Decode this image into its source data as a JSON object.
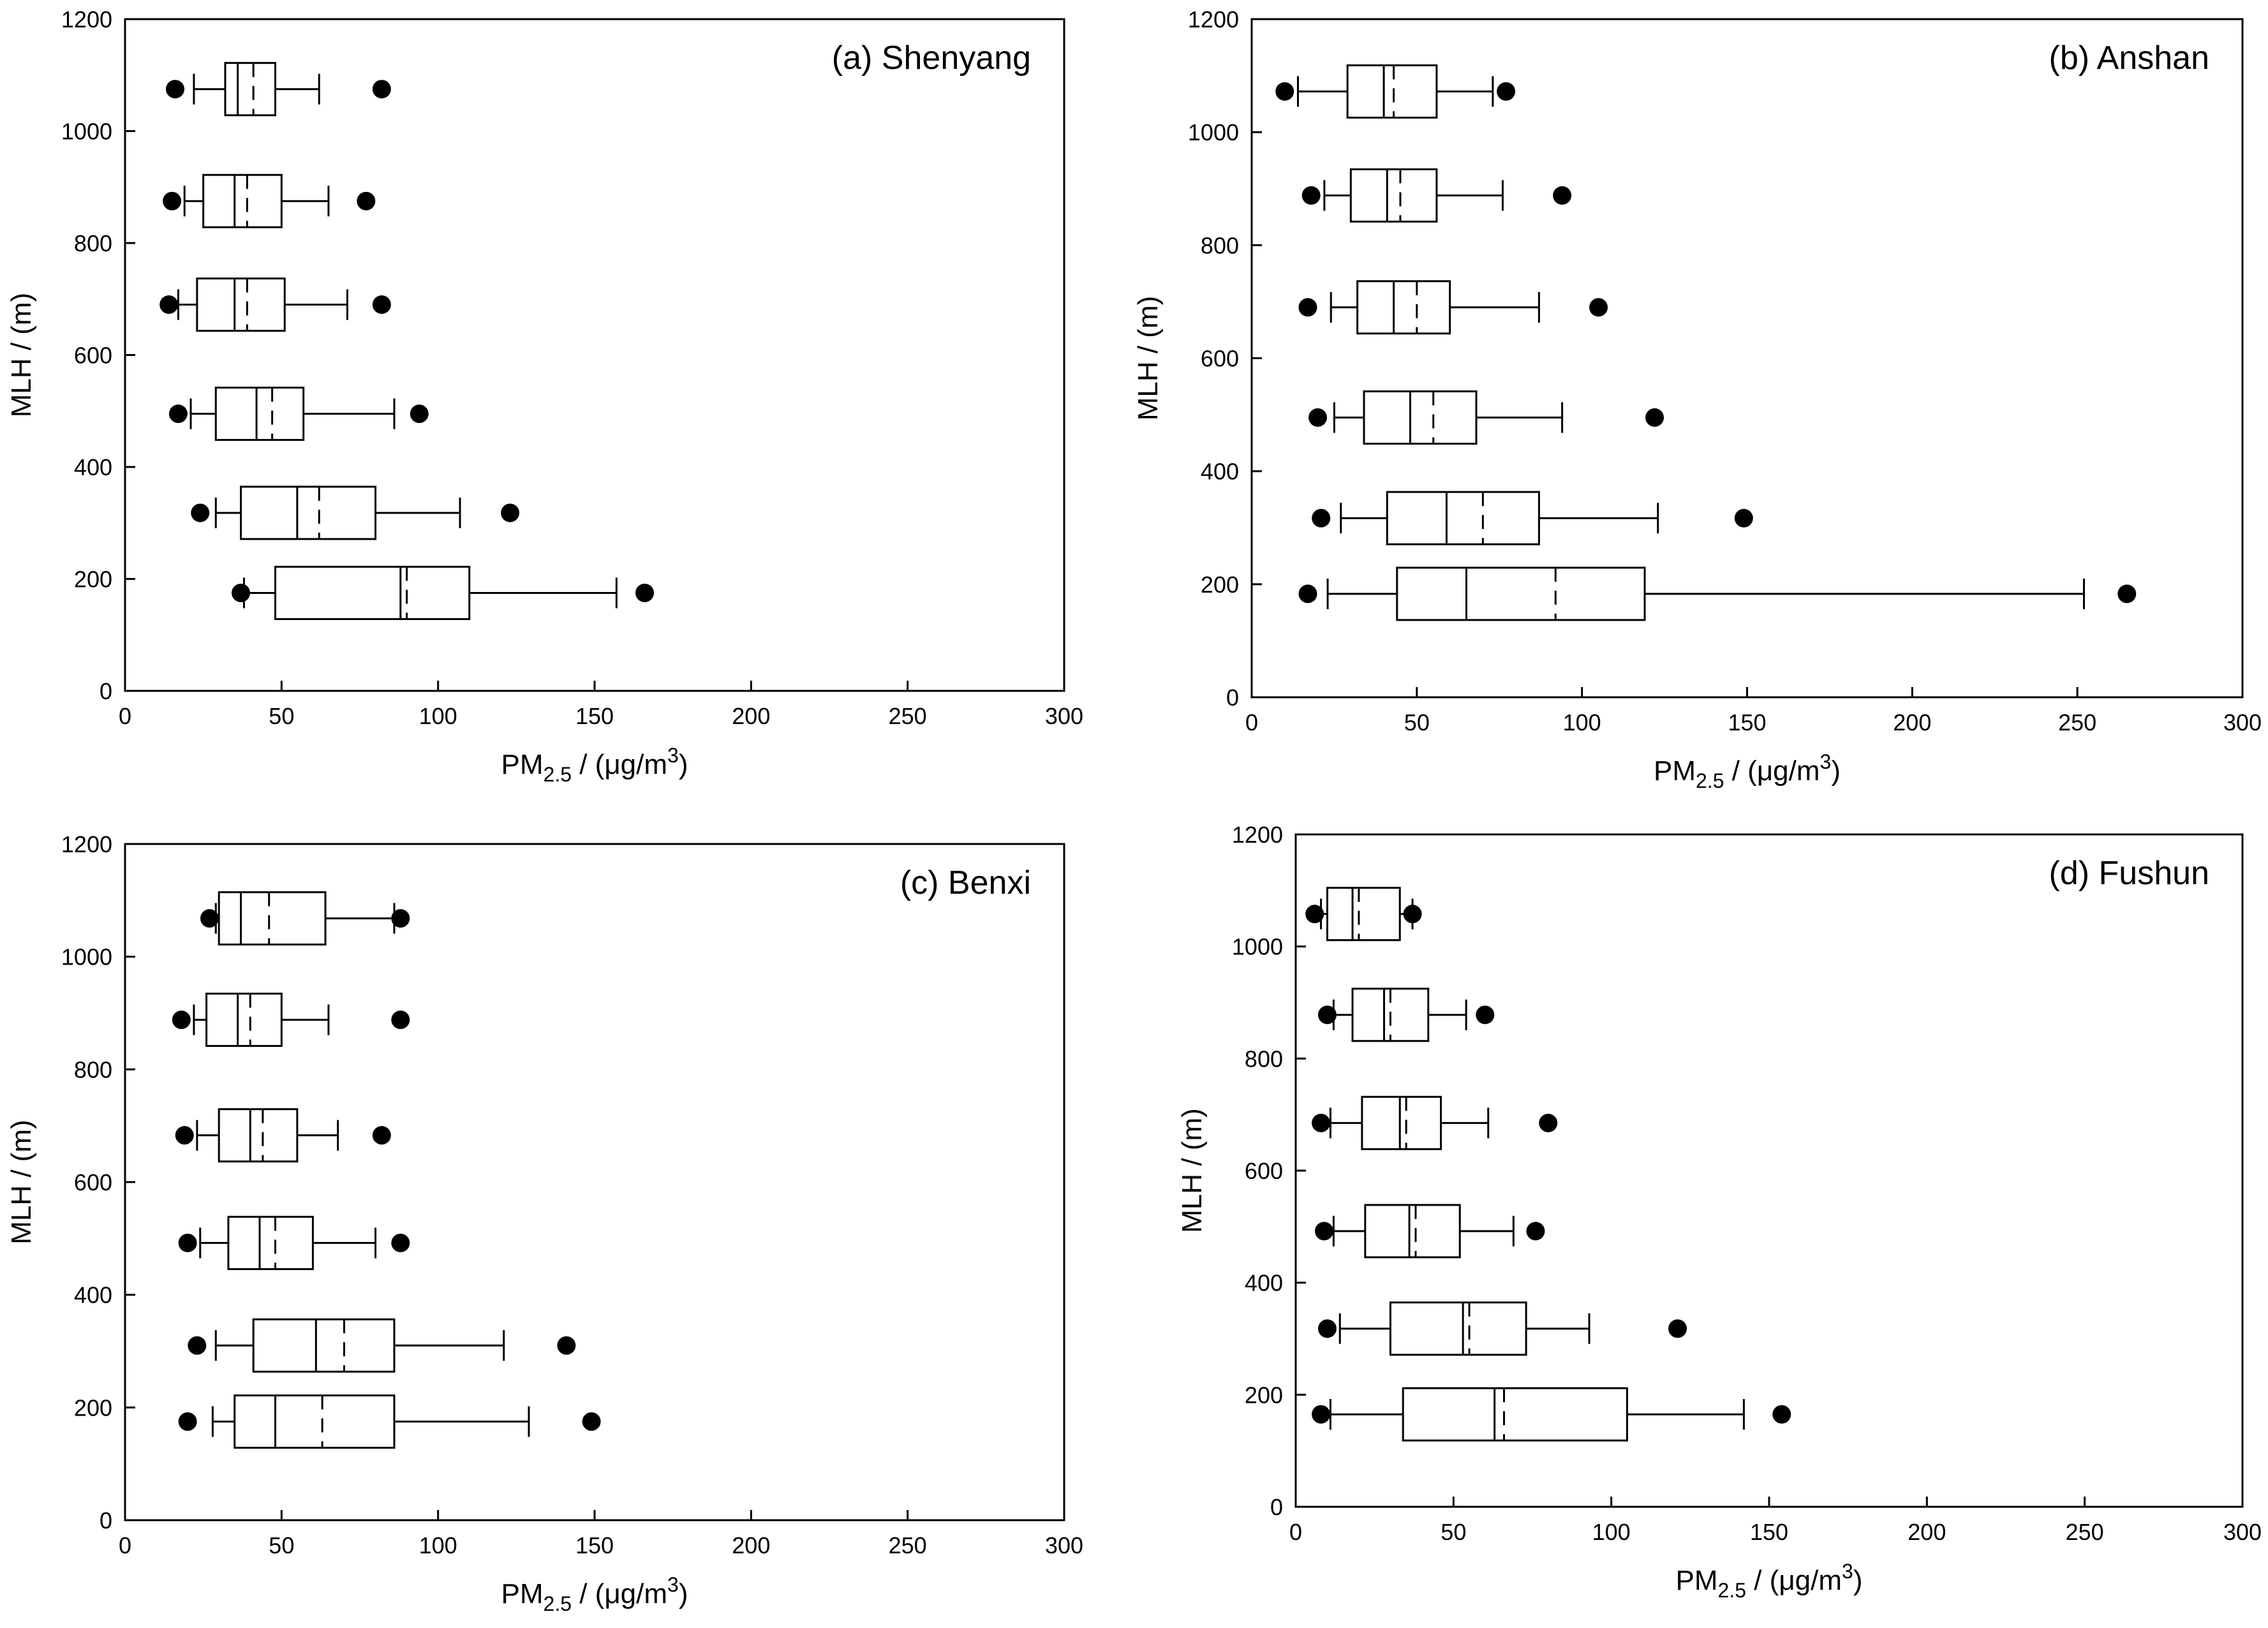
{
  "chart_data": [
    {
      "type": "boxplot",
      "orientation": "horizontal",
      "title": "(a) Shenyang",
      "xlabel": "PM2.5 / (μg/m3)",
      "xlabel_parts": {
        "main": "PM",
        "sub": "2.5",
        "mid": " / (μg/m",
        "sup": "3",
        "end": ")"
      },
      "ylabel": "MLH / (m)",
      "xlim": [
        0,
        300
      ],
      "ylim": [
        0,
        1200
      ],
      "xticks": [
        "0",
        "50",
        "100",
        "150",
        "200",
        "250",
        "300"
      ],
      "yticks": [
        "0",
        "200",
        "400",
        "600",
        "800",
        "1000",
        "1200"
      ],
      "boxes": [
        {
          "y": 1075,
          "p5": 16,
          "p10": 22,
          "q1": 32,
          "median": 36,
          "mean": 41,
          "q3": 48,
          "p90": 62,
          "p95": 82
        },
        {
          "y": 875,
          "p5": 15,
          "p10": 19,
          "q1": 25,
          "median": 35,
          "mean": 39,
          "q3": 50,
          "p90": 65,
          "p95": 77
        },
        {
          "y": 690,
          "p5": 14,
          "p10": 17,
          "q1": 23,
          "median": 35,
          "mean": 39,
          "q3": 51,
          "p90": 71,
          "p95": 82
        },
        {
          "y": 495,
          "p5": 17,
          "p10": 21,
          "q1": 29,
          "median": 42,
          "mean": 47,
          "q3": 57,
          "p90": 86,
          "p95": 94
        },
        {
          "y": 318,
          "p5": 24,
          "p10": 29,
          "q1": 37,
          "median": 55,
          "mean": 62,
          "q3": 80,
          "p90": 107,
          "p95": 123
        },
        {
          "y": 175,
          "p5": 37,
          "p10": 38,
          "q1": 48,
          "median": 88,
          "mean": 90,
          "q3": 110,
          "p90": 157,
          "p95": 166
        }
      ]
    },
    {
      "type": "boxplot",
      "orientation": "horizontal",
      "title": "(b) Anshan",
      "xlabel": "PM2.5 / (μg/m3)",
      "xlabel_parts": {
        "main": "PM",
        "sub": "2.5",
        "mid": " / (μg/m",
        "sup": "3",
        "end": ")"
      },
      "ylabel": "MLH / (m)",
      "xlim": [
        0,
        300
      ],
      "ylim": [
        0,
        1200
      ],
      "xticks": [
        "0",
        "50",
        "100",
        "150",
        "200",
        "250",
        "300"
      ],
      "yticks": [
        "0",
        "200",
        "400",
        "600",
        "800",
        "1000",
        "1200"
      ],
      "boxes": [
        {
          "y": 1072,
          "p5": 10,
          "p10": 14,
          "q1": 29,
          "median": 40,
          "mean": 43,
          "q3": 56,
          "p90": 73,
          "p95": 77
        },
        {
          "y": 888,
          "p5": 18,
          "p10": 22,
          "q1": 30,
          "median": 41,
          "mean": 45,
          "q3": 56,
          "p90": 76,
          "p95": 94
        },
        {
          "y": 690,
          "p5": 17,
          "p10": 24,
          "q1": 32,
          "median": 43,
          "mean": 50,
          "q3": 60,
          "p90": 87,
          "p95": 105
        },
        {
          "y": 495,
          "p5": 20,
          "p10": 25,
          "q1": 34,
          "median": 48,
          "mean": 55,
          "q3": 68,
          "p90": 94,
          "p95": 122
        },
        {
          "y": 317,
          "p5": 21,
          "p10": 27,
          "q1": 41,
          "median": 59,
          "mean": 70,
          "q3": 87,
          "p90": 123,
          "p95": 149
        },
        {
          "y": 183,
          "p5": 17,
          "p10": 23,
          "q1": 44,
          "median": 65,
          "mean": 92,
          "q3": 119,
          "p90": 252,
          "p95": 265
        }
      ]
    },
    {
      "type": "boxplot",
      "orientation": "horizontal",
      "title": "(c) Benxi",
      "xlabel": "PM2.5 / (μg/m3)",
      "xlabel_parts": {
        "main": "PM",
        "sub": "2.5",
        "mid": " / (μg/m",
        "sup": "3",
        "end": ")"
      },
      "ylabel": "MLH / (m)",
      "xlim": [
        0,
        300
      ],
      "ylim": [
        0,
        1200
      ],
      "xticks": [
        "0",
        "50",
        "100",
        "150",
        "200",
        "250",
        "300"
      ],
      "yticks": [
        "0",
        "200",
        "400",
        "600",
        "800",
        "1000",
        "1200"
      ],
      "boxes": [
        {
          "y": 1068,
          "p5": 27,
          "p10": 29,
          "q1": 30,
          "median": 37,
          "mean": 46,
          "q3": 64,
          "p90": 86,
          "p95": 88
        },
        {
          "y": 888,
          "p5": 18,
          "p10": 22,
          "q1": 26,
          "median": 36,
          "mean": 40,
          "q3": 50,
          "p90": 65,
          "p95": 88
        },
        {
          "y": 683,
          "p5": 19,
          "p10": 23,
          "q1": 30,
          "median": 40,
          "mean": 44,
          "q3": 55,
          "p90": 68,
          "p95": 82
        },
        {
          "y": 492,
          "p5": 20,
          "p10": 24,
          "q1": 33,
          "median": 43,
          "mean": 48,
          "q3": 60,
          "p90": 80,
          "p95": 88
        },
        {
          "y": 310,
          "p5": 23,
          "p10": 29,
          "q1": 41,
          "median": 61,
          "mean": 70,
          "q3": 86,
          "p90": 121,
          "p95": 141
        },
        {
          "y": 175,
          "p5": 20,
          "p10": 28,
          "q1": 35,
          "median": 48,
          "mean": 63,
          "q3": 86,
          "p90": 129,
          "p95": 149
        }
      ]
    },
    {
      "type": "boxplot",
      "orientation": "horizontal",
      "title": "(d) Fushun",
      "xlabel": "PM2.5 / (μg/m3)",
      "xlabel_parts": {
        "main": "PM",
        "sub": "2.5",
        "mid": " / (μg/m",
        "sup": "3",
        "end": ")"
      },
      "ylabel": "MLH / (m)",
      "xlim": [
        0,
        300
      ],
      "ylim": [
        0,
        1200
      ],
      "xticks": [
        "0",
        "50",
        "100",
        "150",
        "200",
        "250",
        "300"
      ],
      "yticks": [
        "0",
        "200",
        "400",
        "600",
        "800",
        "1000",
        "1200"
      ],
      "boxes": [
        {
          "y": 1058,
          "p5": 6,
          "p10": 8,
          "q1": 10,
          "median": 18,
          "mean": 20,
          "q3": 33,
          "p90": 37,
          "p95": 37
        },
        {
          "y": 878,
          "p5": 10,
          "p10": 12,
          "q1": 18,
          "median": 28,
          "mean": 30,
          "q3": 42,
          "p90": 54,
          "p95": 60
        },
        {
          "y": 685,
          "p5": 8,
          "p10": 11,
          "q1": 21,
          "median": 33,
          "mean": 35,
          "q3": 46,
          "p90": 61,
          "p95": 80
        },
        {
          "y": 492,
          "p5": 9,
          "p10": 12,
          "q1": 22,
          "median": 36,
          "mean": 38,
          "q3": 52,
          "p90": 69,
          "p95": 76
        },
        {
          "y": 318,
          "p5": 10,
          "p10": 14,
          "q1": 30,
          "median": 53,
          "mean": 55,
          "q3": 73,
          "p90": 93,
          "p95": 121
        },
        {
          "y": 165,
          "p5": 8,
          "p10": 11,
          "q1": 34,
          "median": 63,
          "mean": 66,
          "q3": 105,
          "p90": 142,
          "p95": 154
        }
      ]
    }
  ]
}
